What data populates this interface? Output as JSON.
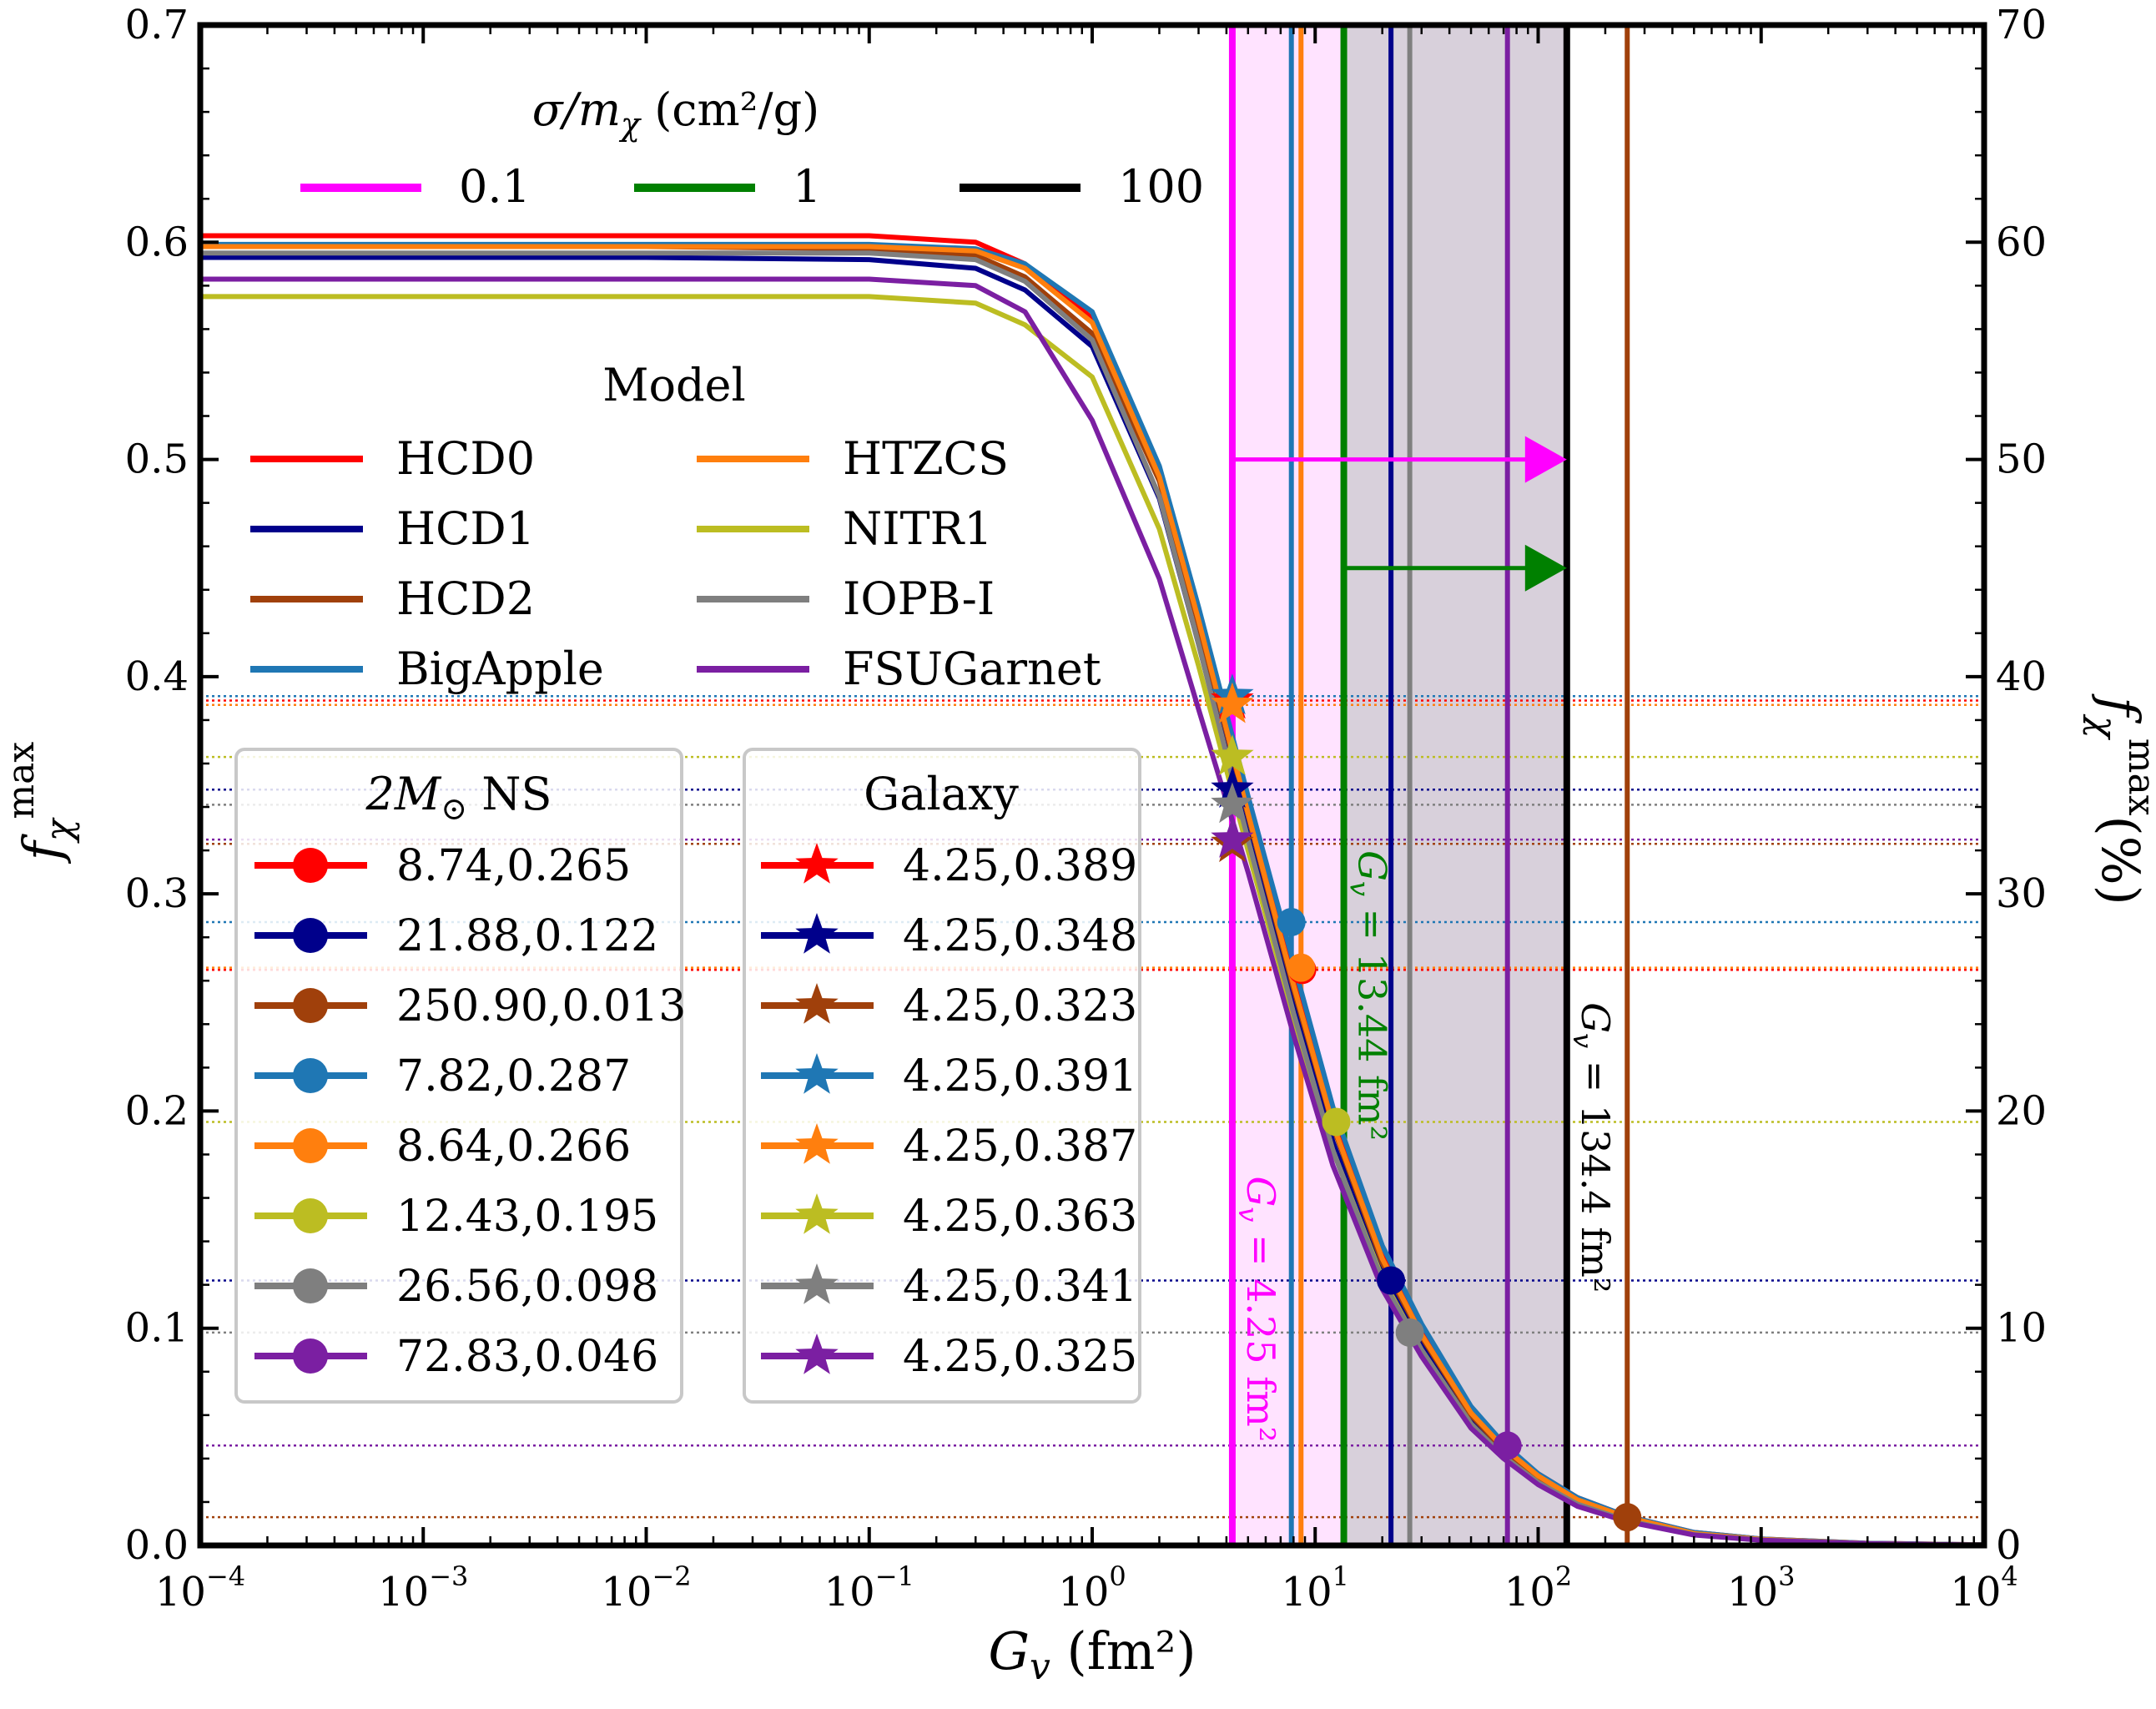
{
  "chart_data": {
    "type": "line",
    "xscale": "log",
    "xlim": [
      0.0001,
      10000
    ],
    "ylim": [
      0,
      0.7
    ],
    "ylim_right": [
      0,
      70
    ],
    "xlabel": "G_v (fm²)",
    "xlabel_main": "G",
    "xlabel_sub": "v",
    "xlabel_unit": "(fm²)",
    "ylabel": "f_χ^max",
    "ylabel_main": "f",
    "ylabel_sub": "χ",
    "ylabel_sup": "max",
    "ylabel_right": "f_χ^max (%)",
    "ylabel_right_suffix": "(%)",
    "x_ticks": [
      {
        "value": 0.0001,
        "base": "10",
        "exp": "−4"
      },
      {
        "value": 0.001,
        "base": "10",
        "exp": "−3"
      },
      {
        "value": 0.01,
        "base": "10",
        "exp": "−2"
      },
      {
        "value": 0.1,
        "base": "10",
        "exp": "−1"
      },
      {
        "value": 1,
        "base": "10",
        "exp": "0"
      },
      {
        "value": 10,
        "base": "10",
        "exp": "1"
      },
      {
        "value": 100,
        "base": "10",
        "exp": "2"
      },
      {
        "value": 1000,
        "base": "10",
        "exp": "3"
      },
      {
        "value": 10000,
        "base": "10",
        "exp": "4"
      }
    ],
    "y_ticks": [
      "0.0",
      "0.1",
      "0.2",
      "0.3",
      "0.4",
      "0.5",
      "0.6",
      "0.7"
    ],
    "y_ticks_right": [
      "0",
      "10",
      "20",
      "30",
      "40",
      "50",
      "60",
      "70"
    ],
    "x_common": [
      0.0001,
      0.001,
      0.01,
      0.1,
      0.3,
      0.5,
      1,
      2,
      3,
      5,
      8,
      12,
      20,
      30,
      50,
      70,
      100,
      150,
      250,
      500,
      1000,
      3000,
      10000
    ],
    "series": [
      {
        "name": "HCD0",
        "color": "#ff0000",
        "values": [
          0.603,
          0.603,
          0.603,
          0.603,
          0.6,
          0.59,
          0.565,
          0.495,
          0.43,
          0.34,
          0.26,
          0.197,
          0.135,
          0.1,
          0.063,
          0.046,
          0.033,
          0.022,
          0.0135,
          0.006,
          0.003,
          0.001,
          0.0003
        ]
      },
      {
        "name": "HCD1",
        "color": "#00008b",
        "values": [
          0.593,
          0.593,
          0.593,
          0.592,
          0.588,
          0.578,
          0.552,
          0.482,
          0.415,
          0.327,
          0.248,
          0.186,
          0.125,
          0.092,
          0.058,
          0.042,
          0.03,
          0.02,
          0.012,
          0.005,
          0.0025,
          0.0008,
          0.0002
        ]
      },
      {
        "name": "HCD2",
        "color": "#a0400b",
        "values": [
          0.598,
          0.598,
          0.598,
          0.597,
          0.594,
          0.584,
          0.558,
          0.49,
          0.424,
          0.336,
          0.256,
          0.193,
          0.13,
          0.096,
          0.06,
          0.044,
          0.031,
          0.021,
          0.013,
          0.0055,
          0.0028,
          0.0009,
          0.0002
        ]
      },
      {
        "name": "BigApple",
        "color": "#1f77b4",
        "values": [
          0.599,
          0.599,
          0.599,
          0.599,
          0.597,
          0.59,
          0.568,
          0.497,
          0.432,
          0.345,
          0.268,
          0.202,
          0.138,
          0.102,
          0.064,
          0.047,
          0.033,
          0.022,
          0.0135,
          0.006,
          0.003,
          0.001,
          0.0003
        ]
      },
      {
        "name": "HTZCS",
        "color": "#ff7f0e",
        "values": [
          0.598,
          0.598,
          0.598,
          0.598,
          0.596,
          0.588,
          0.563,
          0.492,
          0.426,
          0.337,
          0.258,
          0.194,
          0.132,
          0.097,
          0.061,
          0.045,
          0.032,
          0.021,
          0.013,
          0.0055,
          0.0028,
          0.0009,
          0.0002
        ]
      },
      {
        "name": "NITR1",
        "color": "#bcbd22",
        "values": [
          0.575,
          0.575,
          0.575,
          0.575,
          0.572,
          0.562,
          0.538,
          0.468,
          0.405,
          0.32,
          0.243,
          0.182,
          0.123,
          0.09,
          0.056,
          0.041,
          0.029,
          0.019,
          0.0115,
          0.005,
          0.0025,
          0.0008,
          0.0002
        ]
      },
      {
        "name": "IOPB-I",
        "color": "#7f7f7f",
        "values": [
          0.595,
          0.595,
          0.595,
          0.595,
          0.592,
          0.582,
          0.555,
          0.483,
          0.415,
          0.325,
          0.245,
          0.182,
          0.122,
          0.09,
          0.056,
          0.041,
          0.029,
          0.019,
          0.0115,
          0.005,
          0.0025,
          0.0008,
          0.0002
        ]
      },
      {
        "name": "FSUGarnet",
        "color": "#7b1fa2",
        "values": [
          0.583,
          0.583,
          0.583,
          0.583,
          0.58,
          0.568,
          0.518,
          0.445,
          0.385,
          0.31,
          0.235,
          0.175,
          0.118,
          0.087,
          0.054,
          0.04,
          0.028,
          0.018,
          0.011,
          0.0048,
          0.0024,
          0.0008,
          0.0002
        ]
      }
    ],
    "ns_points": [
      {
        "label": "8.74,0.265",
        "x": 8.74,
        "y": 0.265,
        "color": "#ff0000"
      },
      {
        "label": "21.88,0.122",
        "x": 21.88,
        "y": 0.122,
        "color": "#00008b"
      },
      {
        "label": "250.90,0.013",
        "x": 250.9,
        "y": 0.013,
        "color": "#a0400b"
      },
      {
        "label": "7.82,0.287",
        "x": 7.82,
        "y": 0.287,
        "color": "#1f77b4"
      },
      {
        "label": "8.64,0.266",
        "x": 8.64,
        "y": 0.266,
        "color": "#ff7f0e"
      },
      {
        "label": "12.43,0.195",
        "x": 12.43,
        "y": 0.195,
        "color": "#bcbd22"
      },
      {
        "label": "26.56,0.098",
        "x": 26.56,
        "y": 0.098,
        "color": "#7f7f7f"
      },
      {
        "label": "72.83,0.046",
        "x": 72.83,
        "y": 0.046,
        "color": "#7b1fa2"
      }
    ],
    "galaxy_points": [
      {
        "label": "4.25,0.389",
        "x": 4.25,
        "y": 0.389,
        "color": "#ff0000"
      },
      {
        "label": "4.25,0.348",
        "x": 4.25,
        "y": 0.348,
        "color": "#00008b"
      },
      {
        "label": "4.25,0.323",
        "x": 4.25,
        "y": 0.323,
        "color": "#a0400b"
      },
      {
        "label": "4.25,0.391",
        "x": 4.25,
        "y": 0.391,
        "color": "#1f77b4"
      },
      {
        "label": "4.25,0.387",
        "x": 4.25,
        "y": 0.387,
        "color": "#ff7f0e"
      },
      {
        "label": "4.25,0.363",
        "x": 4.25,
        "y": 0.363,
        "color": "#bcbd22"
      },
      {
        "label": "4.25,0.341",
        "x": 4.25,
        "y": 0.341,
        "color": "#7f7f7f"
      },
      {
        "label": "4.25,0.325",
        "x": 4.25,
        "y": 0.325,
        "color": "#7b1fa2"
      }
    ],
    "ns_vertical_lines": [
      {
        "x": 7.82,
        "color": "#1f77b4"
      },
      {
        "x": 8.64,
        "color": "#ff7f0e"
      },
      {
        "x": 21.88,
        "color": "#00008b"
      },
      {
        "x": 26.56,
        "color": "#7f7f7f"
      },
      {
        "x": 72.83,
        "color": "#7b1fa2"
      },
      {
        "x": 250.9,
        "color": "#a0400b"
      }
    ],
    "sigma_lines": [
      {
        "label": "0.1",
        "x": 4.25,
        "color": "#ff00ff",
        "annotation": "G_v = 4.25 fm²",
        "annotation_value": "= 4.25 fm²"
      },
      {
        "label": "1",
        "x": 13.44,
        "color": "#008000",
        "annotation": "G_v = 13.44 fm²",
        "annotation_value": "= 13.44 fm²"
      },
      {
        "label": "100",
        "x": 134.4,
        "color": "#000000",
        "annotation": "G_v = 134.4 fm²",
        "annotation_value": "= 134.4 fm²"
      }
    ],
    "shaded_regions": [
      {
        "x_from": 4.25,
        "x_to": 13.44,
        "color": "#ffccff"
      },
      {
        "x_from": 13.44,
        "x_to": 134.4,
        "color": "#b8a9be"
      }
    ],
    "arrows": [
      {
        "from_x": 4.25,
        "to_x": 134.4,
        "y": 0.5,
        "color": "#ff00ff"
      },
      {
        "from_x": 13.44,
        "to_x": 134.4,
        "y": 0.45,
        "color": "#008000"
      }
    ],
    "legends": {
      "sigma_title": "σ/m_χ (cm²/g)",
      "sigma_title_main": "σ/m",
      "sigma_title_sub": "χ",
      "sigma_title_unit": "(cm²/g)",
      "model_title": "Model",
      "ns_title": "2M⊙ NS",
      "ns_title_main": "2M",
      "ns_title_sub": "⊙",
      "ns_title_rest": "NS",
      "galaxy_title": "Galaxy"
    }
  }
}
